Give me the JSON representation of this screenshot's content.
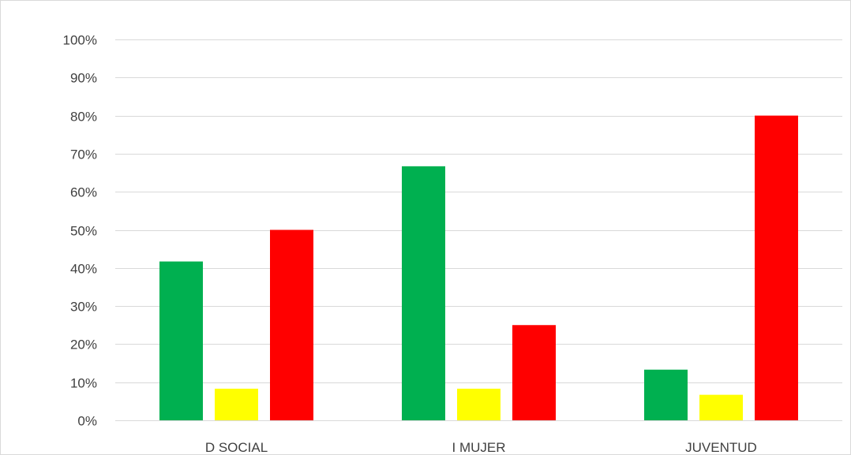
{
  "chart_data": {
    "type": "bar",
    "title": "",
    "xlabel": "",
    "ylabel": "",
    "ylim": [
      0,
      100
    ],
    "y_ticks": [
      0,
      10,
      20,
      30,
      40,
      50,
      60,
      70,
      80,
      90,
      100
    ],
    "y_tick_format": "percent",
    "grid": true,
    "legend": "none",
    "categories": [
      "D SOCIAL",
      "I MUJER",
      "JUVENTUD"
    ],
    "series": [
      {
        "color": "#00b050",
        "values": [
          41.7,
          66.7,
          13.3
        ]
      },
      {
        "color": "#ffff00",
        "values": [
          8.3,
          8.3,
          6.7
        ]
      },
      {
        "color": "#ff0000",
        "values": [
          50,
          25,
          80
        ]
      }
    ]
  }
}
